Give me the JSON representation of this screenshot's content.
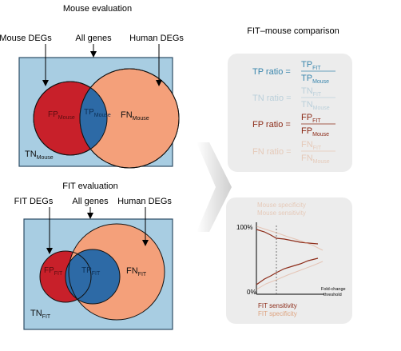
{
  "mouse_panel": {
    "title": "Mouse evaluation",
    "label_mouse_degs": "Mouse DEGs",
    "label_all_genes": "All genes",
    "label_human_degs": "Human DEGs",
    "fp": "FP",
    "fp_sub": "Mouse",
    "tp": "TP",
    "tp_sub": "Mouse",
    "fn": "FN",
    "fn_sub": "Mouse",
    "tn": "TN",
    "tn_sub": "Mouse"
  },
  "fit_panel": {
    "title": "FIT evaluation",
    "label_fit_degs": "FIT DEGs",
    "label_all_genes": "All genes",
    "label_human_degs": "Human DEGs",
    "fp": "FP",
    "fp_sub": "FIT",
    "tp": "TP",
    "tp_sub": "FIT",
    "fn": "FN",
    "fn_sub": "FIT",
    "tn": "TN",
    "tn_sub": "FIT"
  },
  "comparison": {
    "title": "FIT–mouse comparison",
    "ratios": [
      {
        "label": "TP ratio =",
        "num": "TP",
        "num_sub": "FIT",
        "den": "TP",
        "den_sub": "Mouse",
        "color": "#3a86ad",
        "faded": false
      },
      {
        "label": "TN ratio =",
        "num": "TN",
        "num_sub": "FIT",
        "den": "TN",
        "den_sub": "Mouse",
        "color": "#3a86ad",
        "faded": true
      },
      {
        "label": "FP ratio =",
        "num": "FP",
        "num_sub": "FIT",
        "den": "FP",
        "den_sub": "Mouse",
        "color": "#8c2b18",
        "faded": false
      },
      {
        "label": "FN ratio =",
        "num": "FN",
        "num_sub": "FIT",
        "den": "FN",
        "den_sub": "Mouse",
        "color": "#d98a5a",
        "faded": true
      }
    ]
  },
  "chart": {
    "top_faded_line1": "Mouse specificity",
    "top_faded_line2": "Mouse sensitivity",
    "y_max_label": "100%",
    "y_min_label": "0%",
    "x_label_line1": "Fold-change",
    "x_label_line2": "threshold",
    "bottom_line1": "FIT sensitivity",
    "bottom_line2": "FIT specificity"
  },
  "colors": {
    "box_fill": "#a8cde2",
    "mouse_circle": "#c8202a",
    "human_circle": "#f4a07a",
    "overlap": "#2d6aa6",
    "panel_gray": "#ececec",
    "arrow_gray": "#d6d6d6"
  }
}
